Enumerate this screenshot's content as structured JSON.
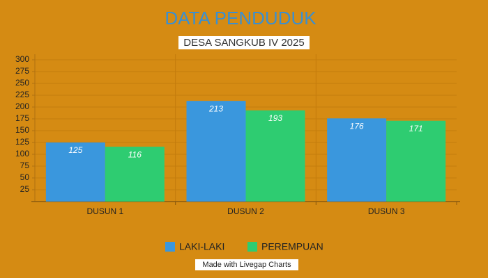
{
  "chart_data": {
    "type": "bar",
    "title": "DATA PENDUDUK",
    "subtitle": "DESA SANGKUB IV 2025",
    "categories": [
      "DUSUN 1",
      "DUSUN 2",
      "DUSUN 3"
    ],
    "series": [
      {
        "name": "LAKI-LAKI",
        "color": "#3a97dd",
        "values": [
          125,
          213,
          176
        ]
      },
      {
        "name": "PEREMPUAN",
        "color": "#2ecc71",
        "values": [
          116,
          193,
          171
        ]
      }
    ],
    "ylim": [
      0,
      300
    ],
    "yticks": [
      25,
      50,
      75,
      100,
      125,
      150,
      175,
      200,
      225,
      250,
      275,
      300
    ],
    "grid": true,
    "legend": "bottom",
    "credit": "Made with Livegap Charts"
  }
}
